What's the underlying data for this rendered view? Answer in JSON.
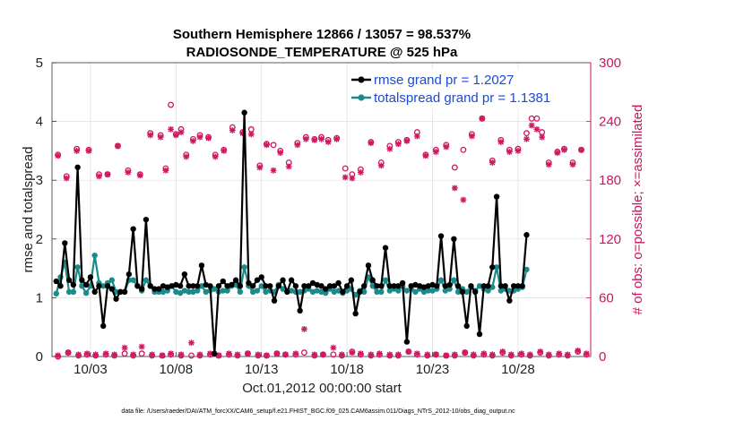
{
  "chart_data": {
    "type": "line",
    "title_line1": "Southern Hemisphere 12866 / 13057 = 98.537%",
    "title_line2": "RADIOSONDE_TEMPERATURE @ 525 hPa",
    "xlabel": "Oct.01,2012 00:00:00 start",
    "ylabel": "rmse and totalspread",
    "ylabel_right": "# of obs: o=possible; ×=assimilated",
    "footer": "data file: /Users/raeder/DAI/ATM_forcXX/CAM6_setup/f.e21.FHIST_BGC.f09_025.CAM6assim.011/Diags_NTrS_2012-10/obs_diag_output.nc",
    "x_tick_labels": [
      "10/03",
      "10/08",
      "10/13",
      "10/18",
      "10/23",
      "10/28"
    ],
    "x_tick_days": [
      3,
      8,
      13,
      18,
      23,
      28
    ],
    "xlim": [
      0.75,
      32.25
    ],
    "ylim": [
      0,
      5
    ],
    "y_ticks": [
      "0",
      "1",
      "2",
      "3",
      "4",
      "5"
    ],
    "ylim_right": [
      0,
      300
    ],
    "y_ticks_right": [
      "0",
      "60",
      "120",
      "180",
      "240",
      "300"
    ],
    "colors": {
      "rmse": "#000000",
      "spread": "#1a8a8a",
      "obs": "#d01860",
      "legend_text": "#1a4bd6",
      "axis_right": "#c8175d"
    },
    "legend": {
      "placement": "top-right",
      "rmse_label": "rmse grand pr = 1.2027",
      "spread_label": "totalspread grand pr = 1.1381"
    },
    "times": [
      1.0,
      1.25,
      1.5,
      1.75,
      2.0,
      2.25,
      2.5,
      2.75,
      3.0,
      3.25,
      3.5,
      3.75,
      4.0,
      4.25,
      4.5,
      4.75,
      5.0,
      5.25,
      5.5,
      5.75,
      6.0,
      6.25,
      6.5,
      6.75,
      7.0,
      7.25,
      7.5,
      7.75,
      8.0,
      8.25,
      8.5,
      8.75,
      9.0,
      9.25,
      9.5,
      9.75,
      10.0,
      10.25,
      10.5,
      10.75,
      11.0,
      11.25,
      11.5,
      11.75,
      12.0,
      12.25,
      12.5,
      12.75,
      13.0,
      13.25,
      13.5,
      13.75,
      14.0,
      14.25,
      14.5,
      14.75,
      15.0,
      15.25,
      15.5,
      15.75,
      16.0,
      16.25,
      16.5,
      16.75,
      17.0,
      17.25,
      17.5,
      17.75,
      18.0,
      18.25,
      18.5,
      18.75,
      19.0,
      19.25,
      19.5,
      19.75,
      20.0,
      20.25,
      20.5,
      20.75,
      21.0,
      21.25,
      21.5,
      21.75,
      22.0,
      22.25,
      22.5,
      22.75,
      23.0,
      23.25,
      23.5,
      23.75,
      24.0,
      24.25,
      24.5,
      24.75,
      25.0,
      25.25,
      25.5,
      25.75,
      26.0,
      26.25,
      26.5,
      26.75,
      27.0,
      27.25,
      27.5,
      27.75,
      28.0,
      28.25,
      28.5,
      28.75,
      29.0,
      29.25,
      29.5,
      29.75,
      30.0,
      30.25,
      30.5,
      30.75,
      31.0,
      31.25,
      31.5,
      31.75,
      32.0
    ],
    "series": [
      {
        "name": "rmse",
        "values": [
          1.28,
          1.2,
          1.93,
          1.3,
          1.22,
          3.22,
          1.3,
          1.22,
          1.35,
          1.1,
          1.2,
          0.52,
          1.2,
          1.15,
          0.98,
          1.1,
          1.1,
          1.4,
          2.17,
          1.2,
          1.15,
          2.33,
          1.2,
          1.15,
          1.15,
          1.2,
          1.18,
          1.2,
          1.22,
          1.2,
          1.4,
          1.2,
          1.2,
          1.2,
          1.55,
          1.22,
          1.2,
          0.05,
          1.2,
          1.28,
          1.2,
          1.22,
          1.3,
          1.2,
          4.15,
          1.25,
          1.2,
          1.3,
          1.35,
          1.2,
          1.2,
          0.95,
          1.2,
          1.3,
          1.1,
          1.3,
          1.2,
          0.78,
          1.2,
          1.2,
          1.25,
          1.22,
          1.2,
          1.15,
          1.2,
          1.2,
          1.25,
          1.1,
          1.2,
          1.3,
          0.73,
          1.1,
          1.2,
          1.55,
          1.3,
          1.2,
          1.2,
          1.85,
          1.2,
          1.2,
          1.2,
          1.25,
          0.25,
          1.2,
          1.22,
          1.2,
          1.18,
          1.2,
          1.22,
          1.2,
          2.05,
          1.2,
          1.22,
          2.0,
          1.2,
          1.1,
          0.52,
          1.2,
          1.1,
          0.38,
          1.2,
          1.2,
          1.52,
          2.72,
          1.2,
          1.2,
          0.95,
          1.2,
          1.2,
          1.2,
          2.07
        ]
      },
      {
        "name": "totalspread",
        "values": [
          1.07,
          1.35,
          1.6,
          1.1,
          1.1,
          1.52,
          1.2,
          1.08,
          1.2,
          1.72,
          1.25,
          1.2,
          1.25,
          1.3,
          1.1,
          1.1,
          1.1,
          1.3,
          1.3,
          1.2,
          1.12,
          1.3,
          1.2,
          1.1,
          1.1,
          1.1,
          1.12,
          1.2,
          1.1,
          1.08,
          1.12,
          1.1,
          1.1,
          1.12,
          1.2,
          1.1,
          1.12,
          1.15,
          1.1,
          1.12,
          1.12,
          1.2,
          1.22,
          1.1,
          1.52,
          1.2,
          1.1,
          1.12,
          1.2,
          1.1,
          1.12,
          1.1,
          1.22,
          1.15,
          1.1,
          1.12,
          1.1,
          1.1,
          1.12,
          1.15,
          1.1,
          1.12,
          1.1,
          1.08,
          1.15,
          1.1,
          1.12,
          1.08,
          1.12,
          1.15,
          1.05,
          1.12,
          1.1,
          1.35,
          1.2,
          1.1,
          1.1,
          1.3,
          1.12,
          1.15,
          1.12,
          1.2,
          1.12,
          1.15,
          1.1,
          1.15,
          1.1,
          1.12,
          1.12,
          1.15,
          1.3,
          1.12,
          1.15,
          1.3,
          1.1,
          1.15,
          1.1,
          1.18,
          1.12,
          1.2,
          1.15,
          1.12,
          1.18,
          1.52,
          1.12,
          1.15,
          1.12,
          1.12,
          1.15,
          1.18,
          1.48
        ]
      }
    ],
    "obs_possible_days": [
      1.1,
      1.6,
      2.2,
      2.9,
      3.5,
      4.0,
      4.6,
      5.2,
      5.9,
      6.5,
      7.1,
      7.4,
      7.7,
      8.0,
      8.3,
      8.6,
      9.0,
      9.4,
      9.9,
      10.3,
      10.8,
      11.3,
      11.9,
      12.4,
      12.9,
      13.3,
      13.7,
      14.1,
      14.6,
      15.1,
      15.6,
      16.1,
      16.5,
      16.9,
      17.4,
      17.9,
      18.3,
      18.8,
      19.4,
      20.0,
      20.5,
      21.0,
      21.5,
      22.1,
      22.6,
      23.2,
      23.8,
      24.3,
      24.8,
      25.3,
      25.9,
      26.5,
      27.0,
      27.5,
      28.0,
      28.5,
      28.8,
      29.1,
      29.4,
      29.8,
      30.3,
      30.7,
      31.2,
      31.7
    ],
    "obs_possible_counts": [
      206,
      184,
      212,
      211,
      186,
      186,
      215,
      190,
      186,
      228,
      226,
      192,
      257,
      227,
      232,
      206,
      222,
      226,
      224,
      206,
      211,
      234,
      229,
      232,
      195,
      217,
      216,
      210,
      198,
      218,
      224,
      222,
      224,
      221,
      223,
      192,
      186,
      191,
      219,
      198,
      215,
      219,
      221,
      229,
      206,
      211,
      216,
      193,
      211,
      227,
      243,
      200,
      221,
      211,
      212,
      228,
      243,
      243,
      229,
      198,
      209,
      212,
      198,
      211
    ],
    "obs_assim_days": [
      1.1,
      1.6,
      2.2,
      2.9,
      3.5,
      4.0,
      4.6,
      5.2,
      5.9,
      6.5,
      7.1,
      7.4,
      7.7,
      8.0,
      8.3,
      8.6,
      9.0,
      9.4,
      9.9,
      10.3,
      10.8,
      11.3,
      11.9,
      12.4,
      12.9,
      13.3,
      13.7,
      14.1,
      14.6,
      15.1,
      15.6,
      16.1,
      16.5,
      16.9,
      17.4,
      17.9,
      18.3,
      18.8,
      19.4,
      20.0,
      20.5,
      21.0,
      21.5,
      22.1,
      22.6,
      23.2,
      23.8,
      24.3,
      24.8,
      25.3,
      25.9,
      26.5,
      27.0,
      27.5,
      28.0,
      28.5,
      28.8,
      29.1,
      29.4,
      29.8,
      30.3,
      30.7,
      31.2,
      31.7
    ],
    "obs_assim_counts": [
      205,
      182,
      210,
      210,
      184,
      186,
      215,
      188,
      185,
      226,
      224,
      190,
      232,
      226,
      229,
      204,
      220,
      224,
      223,
      204,
      210,
      231,
      228,
      227,
      193,
      216,
      190,
      208,
      194,
      216,
      222,
      221,
      222,
      219,
      222,
      183,
      182,
      188,
      218,
      195,
      212,
      217,
      220,
      225,
      205,
      209,
      214,
      172,
      160,
      225,
      243,
      198,
      219,
      209,
      210,
      222,
      236,
      232,
      224,
      196,
      208,
      211,
      196,
      211
    ],
    "obs_low_possible_days": [
      1.1,
      1.7,
      2.3,
      2.8,
      3.3,
      3.9,
      4.4,
      5.0,
      5.5,
      6.0,
      6.6,
      7.2,
      7.7,
      8.3,
      8.9,
      9.4,
      10.0,
      10.5,
      11.1,
      11.6,
      12.2,
      12.8,
      13.3,
      13.9,
      14.4,
      15.0,
      15.5,
      16.1,
      16.6,
      17.2,
      17.7,
      18.3,
      18.8,
      19.4,
      19.9,
      20.5,
      21.0,
      21.6,
      22.1,
      22.7,
      23.2,
      23.8,
      24.3,
      24.9,
      25.4,
      26.0,
      26.5,
      27.1,
      27.6,
      28.2,
      28.7,
      29.3,
      29.8,
      30.4,
      30.9,
      31.5,
      32.0
    ],
    "obs_low_possible_counts": [
      0,
      4,
      1,
      2,
      1,
      2,
      1,
      3,
      1,
      3,
      1,
      1,
      2,
      1,
      1,
      1,
      2,
      1,
      2,
      1,
      3,
      1,
      1,
      3,
      2,
      2,
      4,
      1,
      2,
      2,
      1,
      5,
      2,
      1,
      2,
      1,
      1,
      5,
      2,
      1,
      2,
      1,
      1,
      4,
      1,
      2,
      1,
      4,
      1,
      2,
      1,
      4,
      1,
      2,
      1,
      5,
      2
    ],
    "obs_low_assim_days": [
      1.1,
      1.7,
      2.3,
      2.8,
      3.3,
      3.9,
      4.4,
      5.0,
      5.5,
      6.0,
      6.6,
      7.2,
      7.7,
      8.3,
      8.9,
      9.4,
      10.0,
      10.5,
      11.1,
      11.6,
      12.2,
      12.8,
      13.3,
      13.9,
      14.4,
      15.0,
      15.5,
      16.1,
      16.6,
      17.2,
      17.7,
      18.3,
      18.8,
      19.4,
      19.9,
      20.5,
      21.0,
      21.6,
      22.1,
      22.7,
      23.2,
      23.8,
      24.3,
      24.9,
      25.4,
      26.0,
      26.5,
      27.1,
      27.6,
      28.2,
      28.7,
      29.3,
      29.8,
      30.4,
      30.9,
      31.5,
      32.0
    ],
    "obs_low_assim_counts": [
      1,
      4,
      2,
      3,
      2,
      3,
      2,
      9,
      2,
      10,
      2,
      1,
      3,
      2,
      14,
      2,
      3,
      1,
      3,
      2,
      3,
      2,
      1,
      3,
      2,
      3,
      28,
      2,
      2,
      9,
      2,
      4,
      3,
      2,
      3,
      2,
      2,
      5,
      3,
      2,
      2,
      1,
      2,
      4,
      2,
      3,
      2,
      5,
      2,
      3,
      2,
      5,
      2,
      3,
      2,
      6,
      3
    ]
  }
}
